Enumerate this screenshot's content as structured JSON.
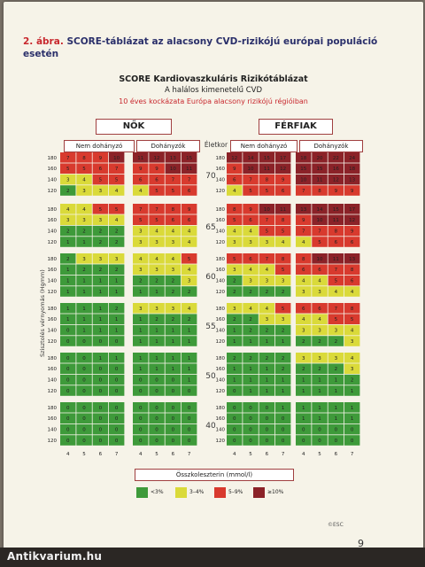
{
  "caption": {
    "fig": "2. ábra.",
    "text": "SCORE-táblázat az alacsony CVD-rizikójú európai populáció esetén"
  },
  "titles": {
    "main": "SCORE Kardiovaszkuláris Rizikótáblázat",
    "sub": "A halálos kimenetelű CVD",
    "red": "10 éves kockázata Európa alacsony rizikójú régióiban"
  },
  "sexes": {
    "women": "NŐK",
    "men": "FÉRFIAK"
  },
  "smoking": {
    "non": "Nem dohányzó",
    "smoker": "Dohányzók"
  },
  "age_header": "Életkor",
  "y_axis_label": "Szisztolés vérnyomás (Hgmm)",
  "x_axis_label": "Összkoleszterin (mmol/l)",
  "bp_values": [
    "180",
    "160",
    "140",
    "120"
  ],
  "chol_values": [
    "4",
    "5",
    "6",
    "7"
  ],
  "legend": [
    {
      "label": "<3%",
      "color": "#3e9a3a"
    },
    {
      "label": "3–4%",
      "color": "#dada3a"
    },
    {
      "label": "5–9%",
      "color": "#d83a2e"
    },
    {
      "label": "≥10%",
      "color": "#8b2228"
    }
  ],
  "colors": {
    "green": "#3e9a3a",
    "yellow": "#dada3a",
    "red": "#d83a2e",
    "darkred": "#8b2228"
  },
  "esc": "©ESC",
  "page_number": "9",
  "watermark": "Antikvarium.hu",
  "chart_data": {
    "type": "table",
    "ages": [
      "70",
      "65",
      "60",
      "55",
      "50",
      "40"
    ],
    "tables": {
      "women_non": [
        [
          [
            "7",
            "8",
            "9",
            "10"
          ],
          [
            "5",
            "5",
            "6",
            "7"
          ],
          [
            "3",
            "4",
            "5",
            "5"
          ],
          [
            "2",
            "3",
            "3",
            "4"
          ]
        ],
        [
          [
            "4",
            "4",
            "5",
            "5"
          ],
          [
            "3",
            "3",
            "3",
            "4"
          ],
          [
            "2",
            "2",
            "2",
            "2"
          ],
          [
            "1",
            "1",
            "2",
            "2"
          ]
        ],
        [
          [
            "2",
            "3",
            "3",
            "3"
          ],
          [
            "1",
            "2",
            "2",
            "2"
          ],
          [
            "1",
            "1",
            "1",
            "1"
          ],
          [
            "1",
            "1",
            "1",
            "1"
          ]
        ],
        [
          [
            "1",
            "1",
            "1",
            "2"
          ],
          [
            "1",
            "1",
            "1",
            "1"
          ],
          [
            "0",
            "1",
            "1",
            "1"
          ],
          [
            "0",
            "0",
            "0",
            "0"
          ]
        ],
        [
          [
            "0",
            "0",
            "1",
            "1"
          ],
          [
            "0",
            "0",
            "0",
            "0"
          ],
          [
            "0",
            "0",
            "0",
            "0"
          ],
          [
            "0",
            "0",
            "0",
            "0"
          ]
        ],
        [
          [
            "0",
            "0",
            "0",
            "0"
          ],
          [
            "0",
            "0",
            "0",
            "0"
          ],
          [
            "0",
            "0",
            "0",
            "0"
          ],
          [
            "0",
            "0",
            "0",
            "0"
          ]
        ]
      ],
      "women_smk": [
        [
          [
            "11",
            "12",
            "13",
            "15"
          ],
          [
            "9",
            "9",
            "10",
            "11"
          ],
          [
            "6",
            "6",
            "7",
            "7"
          ],
          [
            "4",
            "5",
            "5",
            "6"
          ]
        ],
        [
          [
            "7",
            "7",
            "8",
            "9"
          ],
          [
            "5",
            "5",
            "6",
            "6"
          ],
          [
            "3",
            "4",
            "4",
            "4"
          ],
          [
            "3",
            "3",
            "3",
            "4"
          ]
        ],
        [
          [
            "4",
            "4",
            "4",
            "5"
          ],
          [
            "3",
            "3",
            "3",
            "4"
          ],
          [
            "2",
            "2",
            "2",
            "3"
          ],
          [
            "1",
            "1",
            "2",
            "2"
          ]
        ],
        [
          [
            "3",
            "3",
            "3",
            "4"
          ],
          [
            "1",
            "2",
            "2",
            "2"
          ],
          [
            "1",
            "1",
            "1",
            "1"
          ],
          [
            "1",
            "1",
            "1",
            "1"
          ]
        ],
        [
          [
            "1",
            "1",
            "1",
            "1"
          ],
          [
            "1",
            "1",
            "1",
            "1"
          ],
          [
            "0",
            "0",
            "0",
            "1"
          ],
          [
            "0",
            "0",
            "0",
            "0"
          ]
        ],
        [
          [
            "0",
            "0",
            "0",
            "0"
          ],
          [
            "0",
            "0",
            "0",
            "0"
          ],
          [
            "0",
            "0",
            "0",
            "0"
          ],
          [
            "0",
            "0",
            "0",
            "0"
          ]
        ]
      ],
      "men_non": [
        [
          [
            "12",
            "14",
            "15",
            "17"
          ],
          [
            "9",
            "10",
            "11",
            "12"
          ],
          [
            "6",
            "7",
            "8",
            "9"
          ],
          [
            "4",
            "5",
            "5",
            "6"
          ]
        ],
        [
          [
            "8",
            "9",
            "10",
            "11"
          ],
          [
            "5",
            "6",
            "7",
            "8"
          ],
          [
            "4",
            "4",
            "5",
            "5"
          ],
          [
            "3",
            "3",
            "3",
            "4"
          ]
        ],
        [
          [
            "5",
            "6",
            "7",
            "8"
          ],
          [
            "3",
            "4",
            "4",
            "5"
          ],
          [
            "2",
            "3",
            "3",
            "3"
          ],
          [
            "2",
            "2",
            "2",
            "2"
          ]
        ],
        [
          [
            "3",
            "4",
            "4",
            "5"
          ],
          [
            "2",
            "2",
            "3",
            "3"
          ],
          [
            "1",
            "2",
            "2",
            "2"
          ],
          [
            "1",
            "1",
            "1",
            "1"
          ]
        ],
        [
          [
            "2",
            "2",
            "2",
            "2"
          ],
          [
            "1",
            "1",
            "1",
            "2"
          ],
          [
            "1",
            "1",
            "1",
            "1"
          ],
          [
            "0",
            "1",
            "1",
            "1"
          ]
        ],
        [
          [
            "0",
            "0",
            "0",
            "1"
          ],
          [
            "0",
            "0",
            "0",
            "0"
          ],
          [
            "0",
            "0",
            "0",
            "0"
          ],
          [
            "0",
            "0",
            "0",
            "0"
          ]
        ]
      ],
      "men_smk": [
        [
          [
            "18",
            "20",
            "22",
            "24"
          ],
          [
            "15",
            "15",
            "16",
            "18"
          ],
          [
            "10",
            "11",
            "12",
            "13"
          ],
          [
            "7",
            "8",
            "9",
            "9"
          ]
        ],
        [
          [
            "13",
            "14",
            "15",
            "17"
          ],
          [
            "9",
            "10",
            "11",
            "12"
          ],
          [
            "7",
            "7",
            "8",
            "9"
          ],
          [
            "4",
            "5",
            "6",
            "6"
          ]
        ],
        [
          [
            "8",
            "10",
            "11",
            "13"
          ],
          [
            "6",
            "6",
            "7",
            "8"
          ],
          [
            "4",
            "4",
            "5",
            "6"
          ],
          [
            "3",
            "3",
            "4",
            "4"
          ]
        ],
        [
          [
            "6",
            "6",
            "7",
            "8"
          ],
          [
            "4",
            "4",
            "5",
            "5"
          ],
          [
            "3",
            "3",
            "3",
            "4"
          ],
          [
            "2",
            "2",
            "2",
            "3"
          ]
        ],
        [
          [
            "3",
            "3",
            "3",
            "4"
          ],
          [
            "2",
            "2",
            "2",
            "3"
          ],
          [
            "1",
            "1",
            "1",
            "2"
          ],
          [
            "1",
            "1",
            "1",
            "1"
          ]
        ],
        [
          [
            "1",
            "1",
            "1",
            "1"
          ],
          [
            "1",
            "1",
            "1",
            "1"
          ],
          [
            "0",
            "0",
            "0",
            "0"
          ],
          [
            "0",
            "0",
            "0",
            "0"
          ]
        ]
      ]
    }
  }
}
